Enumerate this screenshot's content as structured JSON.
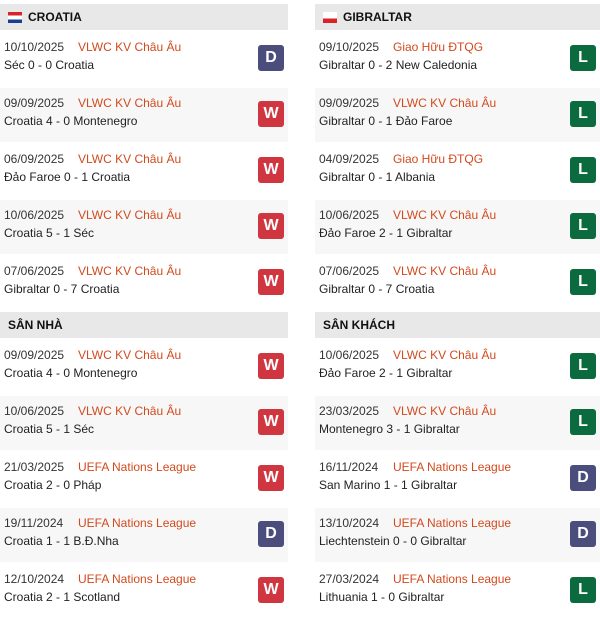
{
  "colors": {
    "W": "#d0363f",
    "D": "#4b4d7d",
    "L": "#0b6b3f"
  },
  "left": {
    "team": "CROATIA",
    "flag": "croatia-flag-icon",
    "recent": [
      {
        "date": "10/10/2025",
        "comp": "VLWC KV Châu Âu",
        "score": "Séc 0 - 0 Croatia",
        "result": "D"
      },
      {
        "date": "09/09/2025",
        "comp": "VLWC KV Châu Âu",
        "score": "Croatia 4 - 0 Montenegro",
        "result": "W"
      },
      {
        "date": "06/09/2025",
        "comp": "VLWC KV Châu Âu",
        "score": "Đảo Faroe 0 - 1 Croatia",
        "result": "W"
      },
      {
        "date": "10/06/2025",
        "comp": "VLWC KV Châu Âu",
        "score": "Croatia 5 - 1 Séc",
        "result": "W"
      },
      {
        "date": "07/06/2025",
        "comp": "VLWC KV Châu Âu",
        "score": "Gibraltar 0 - 7 Croatia",
        "result": "W"
      }
    ],
    "section": "SÂN NHÀ",
    "venue": [
      {
        "date": "09/09/2025",
        "comp": "VLWC KV Châu Âu",
        "score": "Croatia 4 - 0 Montenegro",
        "result": "W"
      },
      {
        "date": "10/06/2025",
        "comp": "VLWC KV Châu Âu",
        "score": "Croatia 5 - 1 Séc",
        "result": "W"
      },
      {
        "date": "21/03/2025",
        "comp": "UEFA Nations League",
        "score": "Croatia 2 - 0 Pháp",
        "result": "W"
      },
      {
        "date": "19/11/2024",
        "comp": "UEFA Nations League",
        "score": "Croatia 1 - 1 B.Đ.Nha",
        "result": "D"
      },
      {
        "date": "12/10/2024",
        "comp": "UEFA Nations League",
        "score": "Croatia 2 - 1 Scotland",
        "result": "W"
      }
    ]
  },
  "right": {
    "team": "GIBRALTAR",
    "flag": "gibraltar-flag-icon",
    "recent": [
      {
        "date": "09/10/2025",
        "comp": "Giao Hữu ĐTQG",
        "score": "Gibraltar 0 - 2 New Caledonia",
        "result": "L"
      },
      {
        "date": "09/09/2025",
        "comp": "VLWC KV Châu Âu",
        "score": "Gibraltar 0 - 1 Đảo Faroe",
        "result": "L"
      },
      {
        "date": "04/09/2025",
        "comp": "Giao Hữu ĐTQG",
        "score": "Gibraltar 0 - 1 Albania",
        "result": "L"
      },
      {
        "date": "10/06/2025",
        "comp": "VLWC KV Châu Âu",
        "score": "Đảo Faroe 2 - 1 Gibraltar",
        "result": "L"
      },
      {
        "date": "07/06/2025",
        "comp": "VLWC KV Châu Âu",
        "score": "Gibraltar 0 - 7 Croatia",
        "result": "L"
      }
    ],
    "section": "SÂN KHÁCH",
    "venue": [
      {
        "date": "10/06/2025",
        "comp": "VLWC KV Châu Âu",
        "score": "Đảo Faroe 2 - 1 Gibraltar",
        "result": "L"
      },
      {
        "date": "23/03/2025",
        "comp": "VLWC KV Châu Âu",
        "score": "Montenegro 3 - 1 Gibraltar",
        "result": "L"
      },
      {
        "date": "16/11/2024",
        "comp": "UEFA Nations League",
        "score": "San Marino 1 - 1 Gibraltar",
        "result": "D"
      },
      {
        "date": "13/10/2024",
        "comp": "UEFA Nations League",
        "score": "Liechtenstein 0 - 0 Gibraltar",
        "result": "D"
      },
      {
        "date": "27/03/2024",
        "comp": "UEFA Nations League",
        "score": "Lithuania 1 - 0 Gibraltar",
        "result": "L"
      }
    ]
  }
}
